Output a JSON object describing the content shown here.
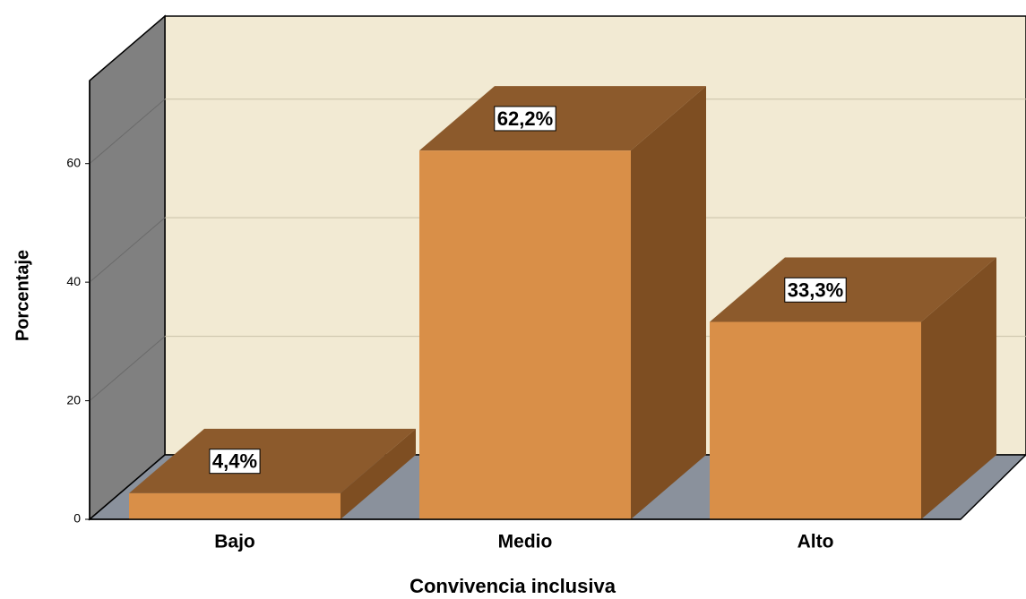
{
  "chart_data": {
    "type": "bar3d",
    "xlabel": "Convivencia inclusiva",
    "ylabel": "Porcentaje",
    "categories": [
      "Bajo",
      "Medio",
      "Alto"
    ],
    "values": [
      4.4,
      62.2,
      33.3
    ],
    "value_labels": [
      "4,4%",
      "62,2%",
      "33,3%"
    ],
    "color": "#d98f48",
    "ylim": [
      0,
      74
    ],
    "yticks": [
      0,
      20,
      40,
      60
    ],
    "grid": true
  }
}
